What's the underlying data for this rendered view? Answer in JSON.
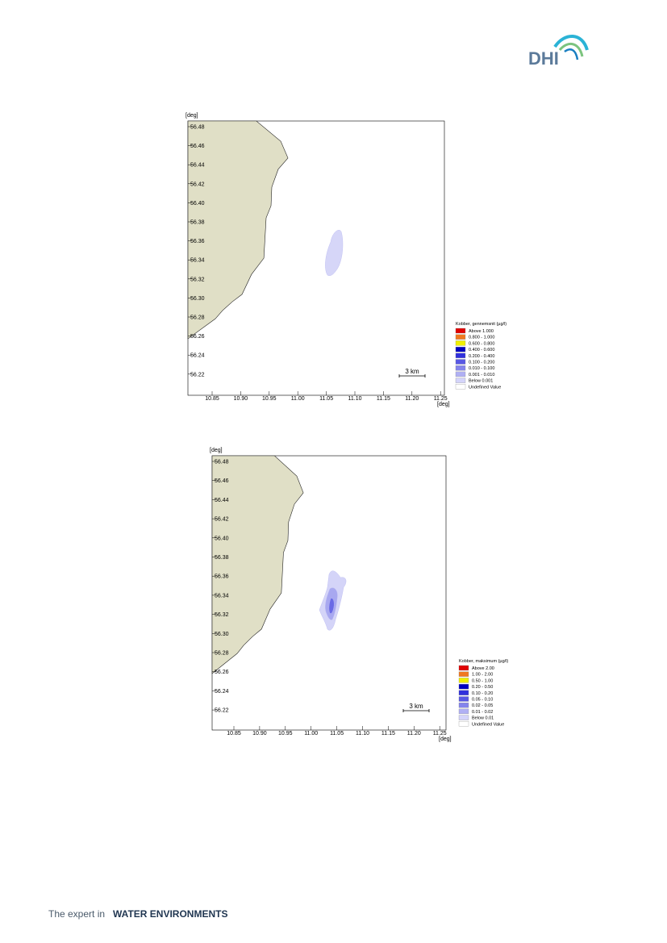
{
  "header": {
    "logo": "DHI"
  },
  "figures": [
    {
      "y_unit": "[deg]",
      "x_unit": "[deg]",
      "yticks": [
        "56.48",
        "56.46",
        "56.44",
        "56.42",
        "56.40",
        "56.38",
        "56.36",
        "56.34",
        "56.32",
        "56.30",
        "56.28",
        "56.26",
        "56.24",
        "56.22"
      ],
      "xticks": [
        "10.85",
        "10.90",
        "10.95",
        "11.00",
        "11.05",
        "11.10",
        "11.15",
        "11.20",
        "11.25"
      ],
      "scale_bar": "3 km",
      "legend": {
        "title": "Kobber, gennemsnit (µg/l)",
        "items": [
          "Above  1.000",
          "0.800 - 1.000",
          "0.600 - 0.800",
          "0.400 - 0.600",
          "0.200 - 0.400",
          "0.100 - 0.200",
          "0.010 - 0.100",
          "0.001 - 0.010",
          "Below  0.001",
          "Undefined Value"
        ]
      }
    },
    {
      "y_unit": "[deg]",
      "x_unit": "[deg]",
      "yticks": [
        "56.48",
        "56.46",
        "56.44",
        "56.42",
        "56.40",
        "56.38",
        "56.36",
        "56.34",
        "56.32",
        "56.30",
        "56.28",
        "56.26",
        "56.24",
        "56.22"
      ],
      "xticks": [
        "10.85",
        "10.90",
        "10.95",
        "11.00",
        "11.05",
        "11.10",
        "11.15",
        "11.20",
        "11.25"
      ],
      "scale_bar": "3 km",
      "legend": {
        "title": "Kobber, maksimum (µg/l)",
        "items": [
          "Above 2.00",
          "1.00 - 2.00",
          "0.50 - 1.00",
          "0.20 - 0.50",
          "0.10 - 0.20",
          "0.05 - 0.10",
          "0.02 - 0.05",
          "0.01 - 0.02",
          "Below 0.01",
          "Undefined Value"
        ]
      }
    }
  ],
  "footer": {
    "lead": "The expert in",
    "strong": "WATER ENVIRONMENTS"
  }
}
